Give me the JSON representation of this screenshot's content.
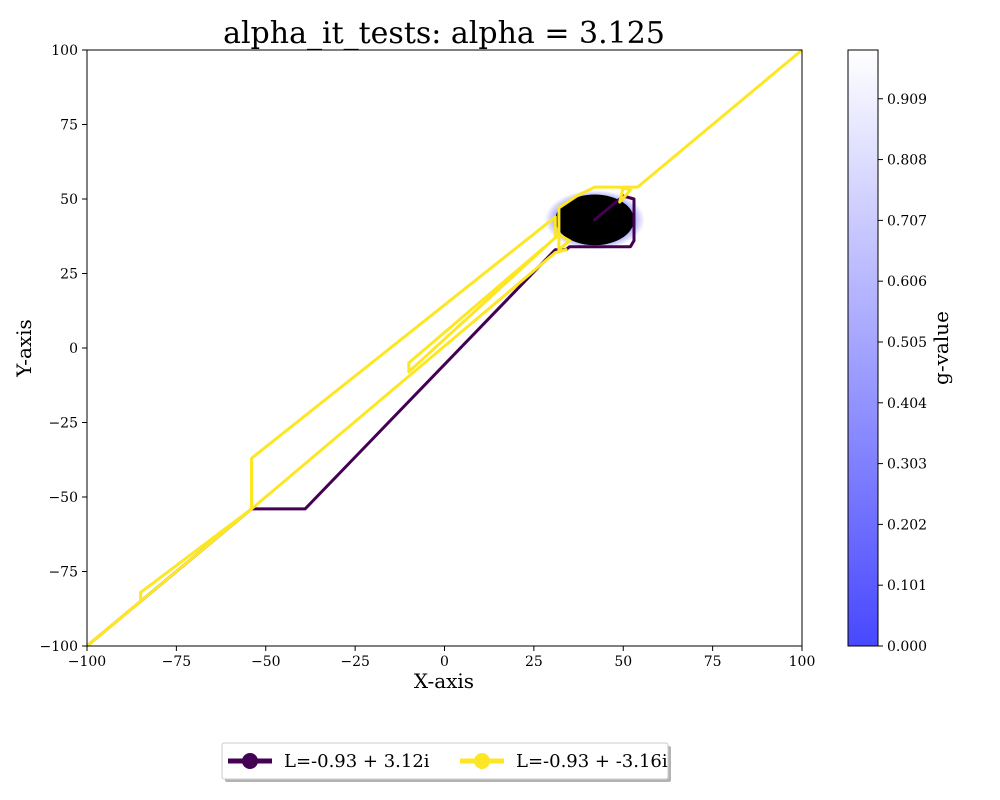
{
  "chart_data": {
    "type": "line",
    "title": "alpha_it_tests: alpha = 3.125",
    "xlabel": "X-axis",
    "ylabel": "Y-axis",
    "xlim": [
      -100,
      100
    ],
    "ylim": [
      -100,
      100
    ],
    "x_ticks": [
      -100,
      -75,
      -50,
      -25,
      0,
      25,
      50,
      75,
      100
    ],
    "y_ticks": [
      -100,
      -75,
      -50,
      -25,
      0,
      25,
      50,
      75,
      100
    ],
    "x_tick_labels": [
      "−100",
      "−75",
      "−50",
      "−25",
      "0",
      "25",
      "50",
      "75",
      "100"
    ],
    "y_tick_labels": [
      "−100",
      "−75",
      "−50",
      "−25",
      "0",
      "25",
      "50",
      "75",
      "100"
    ],
    "grid": false,
    "legend_position": "bottom-center",
    "obstacle": {
      "center": [
        42,
        43
      ],
      "radius_x": 11,
      "radius_y": 8.5,
      "glow_radius_x": 14,
      "glow_radius_y": 10,
      "color": "#000000",
      "glow_color": "#4848ff"
    },
    "series": [
      {
        "name": "L=-0.93 + 3.12i",
        "color": "#440154",
        "path": [
          [
            -100,
            -100
          ],
          [
            -54,
            -54
          ],
          [
            -39,
            -54
          ],
          [
            31,
            33
          ],
          [
            34,
            33
          ],
          [
            35,
            34
          ],
          [
            52,
            34
          ],
          [
            53,
            36
          ],
          [
            53,
            50
          ],
          [
            50,
            51
          ],
          [
            42,
            43
          ]
        ]
      },
      {
        "name": "L=-0.93 + -3.16i",
        "color": "#fde725",
        "path": [
          [
            -100,
            -100
          ],
          [
            -85,
            -85
          ],
          [
            -85,
            -82
          ],
          [
            -54,
            -54
          ],
          [
            -54,
            -37
          ],
          [
            31,
            44
          ],
          [
            31,
            43
          ],
          [
            31,
            37
          ],
          [
            -10,
            -8
          ],
          [
            -10,
            -5
          ],
          [
            32,
            38
          ],
          [
            35,
            36
          ],
          [
            32,
            33
          ],
          [
            32,
            47
          ],
          [
            37,
            51
          ],
          [
            42,
            54
          ],
          [
            49,
            54
          ],
          [
            52,
            53
          ],
          [
            49,
            49
          ],
          [
            50,
            54
          ],
          [
            54,
            54
          ],
          [
            100,
            100
          ]
        ]
      },
      {
        "name": "",
        "color": "#fde725",
        "path": [
          [
            -100,
            -100
          ],
          [
            -54,
            -54
          ],
          [
            31,
            32
          ],
          [
            34,
            33
          ]
        ]
      }
    ],
    "colorbar": {
      "label": "g-value",
      "ticks": [
        0.0,
        0.101,
        0.202,
        0.303,
        0.404,
        0.505,
        0.606,
        0.707,
        0.808,
        0.909
      ],
      "tick_labels": [
        "0.000",
        "0.101",
        "0.202",
        "0.303",
        "0.404",
        "0.505",
        "0.606",
        "0.707",
        "0.808",
        "0.909"
      ],
      "range": [
        0.0,
        0.99
      ],
      "color_low": "#4848ff",
      "color_high": "#ffffff"
    }
  }
}
